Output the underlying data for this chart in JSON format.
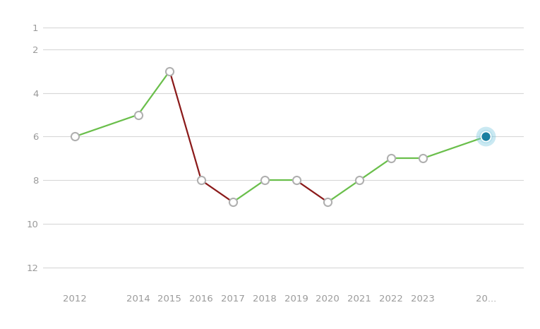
{
  "years": [
    2012,
    2014,
    2015,
    2016,
    2017,
    2018,
    2019,
    2020,
    2021,
    2022,
    2023,
    2025
  ],
  "ranks": [
    6,
    5,
    3,
    8,
    9,
    8,
    8,
    9,
    8,
    7,
    7,
    6
  ],
  "segment_colors": [
    "green",
    "green",
    "red",
    "red",
    "green",
    "green",
    "red",
    "green",
    "green",
    "green",
    "green"
  ],
  "open_circle_indices": [
    0,
    1,
    2,
    3,
    4,
    5,
    6,
    7,
    8,
    9,
    10
  ],
  "filled_circle_index": 11,
  "filled_circle_color": "#1a7fa0",
  "open_circle_color": "#b0b0b0",
  "green_color": "#6abf4b",
  "red_color": "#8b1a1a",
  "bg_color": "#ffffff",
  "grid_color": "#d8d8d8",
  "tick_label_color": "#999999",
  "yticks": [
    1,
    2,
    4,
    6,
    8,
    10,
    12
  ],
  "xlabels": [
    "2012",
    "2014",
    "2015",
    "2016",
    "2017",
    "2018",
    "2019",
    "2020",
    "2021",
    "2022",
    "2023",
    "20..."
  ],
  "ylim": [
    13.0,
    0.2
  ],
  "xlim": [
    2011.0,
    2026.2
  ],
  "line_width": 1.6,
  "open_marker_size": 8,
  "filled_marker_size": 10,
  "glow_color": "#7bc8e0",
  "glow_alpha": 0.4,
  "glow_size": 20,
  "tick_fontsize": 9.5
}
